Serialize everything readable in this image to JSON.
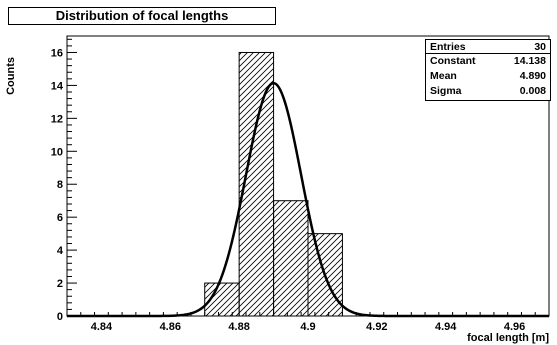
{
  "chart_data": {
    "type": "bar",
    "title": "Distribution of focal lengths",
    "xlabel": "focal length [m]",
    "ylabel": "Counts",
    "xlim": [
      4.83,
      4.97
    ],
    "ylim": [
      0,
      17
    ],
    "x_ticks": [
      4.84,
      4.86,
      4.88,
      4.9,
      4.92,
      4.94,
      4.96
    ],
    "x_tick_labels": [
      "4.84",
      "4.86",
      "4.88",
      "4.9",
      "4.92",
      "4.94",
      "4.96"
    ],
    "y_ticks": [
      0,
      2,
      4,
      6,
      8,
      10,
      12,
      14,
      16
    ],
    "y_tick_labels": [
      "0",
      "2",
      "4",
      "6",
      "8",
      "10",
      "12",
      "14",
      "16"
    ],
    "bins": [
      {
        "low": 4.87,
        "high": 4.88,
        "count": 2
      },
      {
        "low": 4.88,
        "high": 4.89,
        "count": 16
      },
      {
        "low": 4.89,
        "high": 4.9,
        "count": 7
      },
      {
        "low": 4.9,
        "high": 4.91,
        "count": 5
      }
    ],
    "fit": {
      "function": "gaussian",
      "constant": 14.138,
      "mean": 4.89,
      "sigma": 0.008
    },
    "fill_pattern": "diagonal-hatch",
    "grid": false
  },
  "stats_box": {
    "rows": [
      {
        "label": "Entries",
        "value": "30"
      },
      {
        "label": "Constant",
        "value": "14.138"
      },
      {
        "label": "Mean",
        "value": "4.890"
      },
      {
        "label": "Sigma",
        "value": "0.008"
      }
    ]
  }
}
